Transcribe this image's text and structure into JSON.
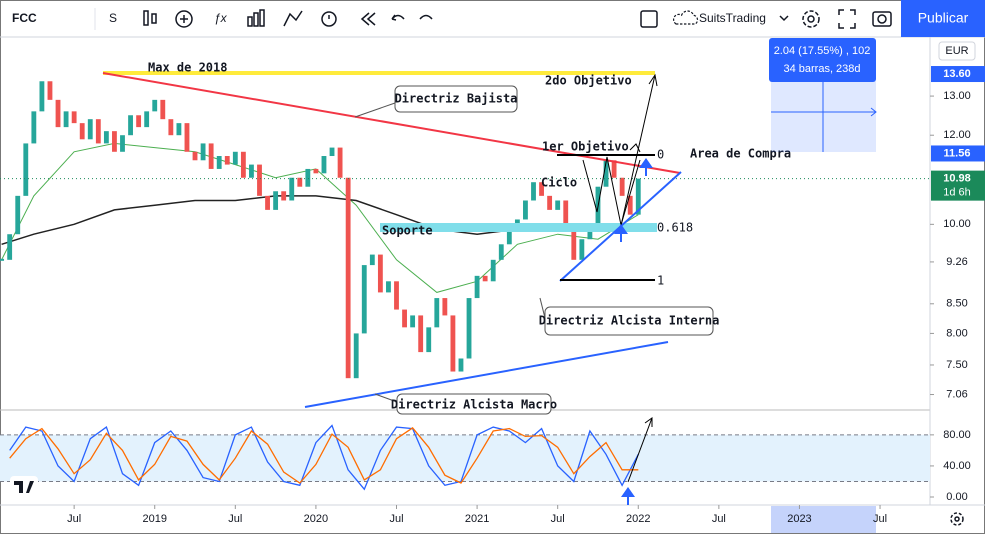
{
  "toolbar": {
    "symbol": "FCC",
    "interval": "S",
    "account": "SuitsTrading",
    "publish": "Publicar"
  },
  "chart_data": [
    {
      "type": "candlestick",
      "currency": "EUR",
      "log_scale": true,
      "up_color": "#26a69a",
      "down_color": "#ef5350",
      "x": [
        2018.05,
        2018.1,
        2018.15,
        2018.2,
        2018.25,
        2018.3,
        2018.35,
        2018.4,
        2018.45,
        2018.5,
        2018.55,
        2018.6,
        2018.65,
        2018.7,
        2018.75,
        2018.8,
        2018.85,
        2018.9,
        2018.95,
        2019.0,
        2019.05,
        2019.1,
        2019.15,
        2019.2,
        2019.25,
        2019.3,
        2019.35,
        2019.4,
        2019.45,
        2019.5,
        2019.55,
        2019.6,
        2019.65,
        2019.7,
        2019.75,
        2019.8,
        2019.85,
        2019.9,
        2019.95,
        2020.0,
        2020.05,
        2020.1,
        2020.15,
        2020.2,
        2020.25,
        2020.3,
        2020.35,
        2020.4,
        2020.45,
        2020.5,
        2020.55,
        2020.6,
        2020.65,
        2020.7,
        2020.75,
        2020.8,
        2020.85,
        2020.9,
        2020.95,
        2021.0,
        2021.05,
        2021.1,
        2021.15,
        2021.2,
        2021.25,
        2021.3,
        2021.35,
        2021.4,
        2021.45,
        2021.5,
        2021.55,
        2021.6,
        2021.65,
        2021.7,
        2021.75,
        2021.8,
        2021.85,
        2021.9,
        2021.95,
        2022.0
      ],
      "close": [
        9.3,
        9.8,
        10.6,
        11.8,
        12.6,
        13.4,
        12.9,
        12.2,
        12.6,
        12.3,
        11.9,
        12.4,
        11.8,
        12.1,
        11.6,
        12.0,
        12.5,
        12.2,
        12.6,
        12.9,
        12.4,
        12.0,
        12.3,
        11.6,
        11.4,
        11.8,
        11.2,
        11.5,
        11.3,
        11.6,
        11.0,
        11.3,
        10.6,
        10.3,
        10.7,
        10.5,
        11.0,
        10.8,
        11.2,
        11.1,
        11.5,
        11.7,
        11.0,
        7.3,
        8.0,
        9.2,
        9.4,
        8.7,
        8.9,
        8.4,
        8.1,
        8.3,
        7.7,
        8.1,
        8.6,
        8.3,
        7.4,
        7.6,
        8.6,
        9.0,
        8.9,
        9.3,
        9.6,
        9.9,
        10.1,
        10.5,
        10.9,
        10.6,
        10.3,
        10.5,
        9.9,
        9.3,
        9.7,
        10.0,
        10.8,
        11.4,
        11.0,
        10.6,
        10.2,
        10.98
      ],
      "series": [
        {
          "color": "#4caf50",
          "x": [
            2018.05,
            2018.25,
            2018.5,
            2018.75,
            2019,
            2019.25,
            2019.5,
            2019.75,
            2020,
            2020.25,
            2020.5,
            2020.75,
            2021,
            2021.25,
            2021.5,
            2021.75,
            2022
          ],
          "values": [
            9.3,
            10.6,
            11.6,
            11.8,
            11.7,
            11.6,
            11.3,
            11.0,
            11.2,
            10.4,
            9.3,
            8.7,
            8.9,
            9.6,
            9.8,
            9.7,
            10.2
          ]
        },
        {
          "color": "#222222",
          "x": [
            2018.05,
            2018.25,
            2018.5,
            2018.75,
            2019,
            2019.25,
            2019.5,
            2019.75,
            2020,
            2020.25,
            2020.5,
            2020.75,
            2021,
            2021.25,
            2021.5,
            2021.75,
            2022
          ],
          "values": [
            9.6,
            9.8,
            10.0,
            10.3,
            10.4,
            10.5,
            10.5,
            10.6,
            10.6,
            10.5,
            10.2,
            9.9,
            9.8,
            9.9,
            9.9,
            10.0,
            10.0
          ]
        }
      ],
      "xlim": [
        2018.04,
        2023.81
      ],
      "xticks": [
        {
          "value": 2018.5,
          "label": "Jul"
        },
        2019,
        {
          "value": 2019.5,
          "label": "Jul"
        },
        2020,
        {
          "value": 2020.5,
          "label": "Jul"
        },
        2021,
        {
          "value": 2021.5,
          "label": "Jul"
        },
        2022,
        {
          "value": 2022.5,
          "label": "Jul"
        },
        2023,
        {
          "value": 2023.5,
          "label": "Jul"
        }
      ],
      "ylim": [
        6.84,
        14.67
      ],
      "yticks": [
        {
          "value": 13,
          "label": "13.00"
        },
        {
          "value": 12,
          "label": "12.00"
        },
        {
          "value": 10,
          "label": "10.00"
        },
        {
          "value": 9.26,
          "label": "9.26"
        },
        {
          "value": 8.5,
          "label": "8.50"
        },
        {
          "value": 8,
          "label": "8.00"
        },
        {
          "value": 7.5,
          "label": "7.50"
        },
        {
          "value": 7.06,
          "label": "7.06"
        }
      ],
      "price_labels": [
        {
          "value": 13.6,
          "label": "13.60",
          "color": "#2962ff"
        },
        {
          "value": 11.56,
          "label": "11.56",
          "color": "#2962ff"
        },
        {
          "value": 10.98,
          "label": "10.98",
          "color": "#1b8a5a",
          "countdown": "1d 6h",
          "dotted_line": true
        }
      ],
      "annotations": [
        "Max de 2018",
        "2do Objetivo",
        "Directriz Bajista",
        "1er Objetivo",
        "Area de Compra",
        "Ciclo",
        "Soporte",
        "0",
        "0.618",
        "1",
        "Directriz Alcista Interna",
        "Directriz Alcista Macro"
      ],
      "measure": [
        "2.04 (17.55%) , 102",
        "34 barras, 238d"
      ]
    },
    {
      "type": "line",
      "x": [
        2018.1,
        2018.2,
        2018.3,
        2018.4,
        2018.5,
        2018.6,
        2018.7,
        2018.8,
        2018.9,
        2019.0,
        2019.1,
        2019.2,
        2019.3,
        2019.4,
        2019.5,
        2019.6,
        2019.7,
        2019.8,
        2019.9,
        2020.0,
        2020.1,
        2020.2,
        2020.3,
        2020.4,
        2020.5,
        2020.6,
        2020.7,
        2020.8,
        2020.9,
        2021.0,
        2021.1,
        2021.2,
        2021.3,
        2021.4,
        2021.5,
        2021.6,
        2021.7,
        2021.8,
        2021.9,
        2022.0
      ],
      "series": [
        {
          "color": "#2962ff",
          "values": [
            60,
            90,
            85,
            40,
            20,
            75,
            90,
            30,
            15,
            70,
            85,
            60,
            25,
            20,
            80,
            90,
            45,
            20,
            15,
            70,
            92,
            35,
            10,
            60,
            90,
            88,
            40,
            15,
            20,
            80,
            90,
            85,
            70,
            88,
            40,
            20,
            85,
            55,
            15,
            55
          ]
        },
        {
          "color": "#ff6d00",
          "values": [
            50,
            75,
            88,
            62,
            30,
            48,
            82,
            60,
            22,
            42,
            78,
            72,
            42,
            22,
            50,
            85,
            68,
            32,
            18,
            42,
            81,
            64,
            22,
            35,
            75,
            89,
            64,
            28,
            18,
            50,
            85,
            88,
            78,
            79,
            64,
            30,
            52,
            70,
            35,
            35
          ]
        }
      ],
      "band": [
        20,
        80
      ],
      "band_color": "#e3f2fd",
      "xlim": [
        2018.04,
        2023.81
      ],
      "ylim": [
        -10.3,
        112
      ],
      "yticks": [
        {
          "value": 80,
          "label": "80.00"
        },
        {
          "value": 40,
          "label": "40.00"
        },
        {
          "value": 0,
          "label": "0.00"
        }
      ]
    }
  ]
}
